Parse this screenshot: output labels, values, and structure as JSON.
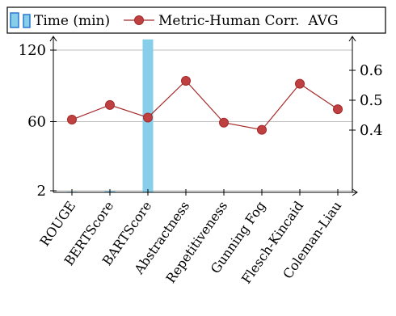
{
  "chart_data": {
    "type": "bar+line",
    "categories": [
      "ROUGE",
      "BERTScore",
      "BARTScore",
      "Abstractness",
      "Repetitiveness",
      "Gunning Fog",
      "Flesch-Kincaid",
      "Coleman-Liau"
    ],
    "series": [
      {
        "name": "Time (min)",
        "type": "bar",
        "axis": "left",
        "color": "#87ceeb",
        "values": [
          1.2,
          1.8,
          129,
          null,
          null,
          null,
          null,
          null
        ]
      },
      {
        "name": "Metric-Human Corr. AVG",
        "type": "line",
        "axis": "right",
        "color": "#a52a2a",
        "marker_color": "#bf4040",
        "values": [
          0.435,
          0.484,
          0.442,
          0.565,
          0.425,
          0.401,
          0.555,
          0.47
        ]
      }
    ],
    "left_axis": {
      "ticks": [
        2,
        60,
        120
      ],
      "tick_labels": [
        "2",
        "60",
        "120"
      ],
      "range": [
        0,
        125
      ]
    },
    "right_axis": {
      "ticks": [
        0.4,
        0.5,
        0.6
      ],
      "tick_labels": [
        "0.4",
        "0.5",
        "0.6"
      ],
      "range": [
        0.285,
        0.69
      ]
    },
    "grid": "horizontal at left-axis ticks",
    "legend": {
      "placement": "top",
      "entries": [
        "Time (min)",
        "Metric-Human Corr.  AVG"
      ]
    }
  }
}
